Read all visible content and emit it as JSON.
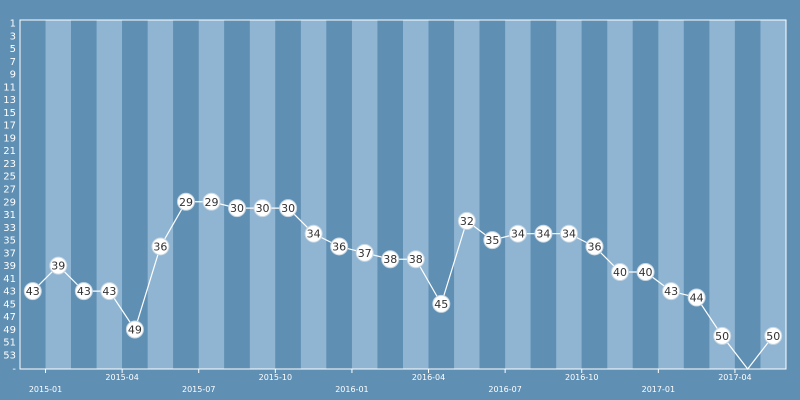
{
  "chart_data": {
    "type": "line",
    "title": "",
    "xlabel": "",
    "ylabel": "",
    "y_axis": {
      "inverted": true,
      "min": 1,
      "max": 53,
      "tick_step": 2,
      "extra_tick_label": "-"
    },
    "x_tick_labels": [
      "2015-01",
      "2015-04",
      "2015-07",
      "2015-10",
      "2016-01",
      "2016-04",
      "2016-07",
      "2016-10",
      "2017-01",
      "2017-04"
    ],
    "x": [
      "2014-12",
      "2015-01",
      "2015-02",
      "2015-03",
      "2015-04",
      "2015-05",
      "2015-06",
      "2015-07",
      "2015-08",
      "2015-09",
      "2015-10",
      "2015-11",
      "2015-12",
      "2016-01",
      "2016-02",
      "2016-03",
      "2016-04",
      "2016-05",
      "2016-06",
      "2016-07",
      "2016-08",
      "2016-09",
      "2016-10",
      "2016-11",
      "2016-12",
      "2017-01",
      "2017-02",
      "2017-03",
      "2017-04",
      "2017-05"
    ],
    "series": [
      {
        "values": [
          43,
          39,
          43,
          43,
          49,
          36,
          29,
          29,
          30,
          30,
          30,
          34,
          36,
          37,
          38,
          38,
          45,
          32,
          35,
          34,
          34,
          34,
          36,
          40,
          40,
          43,
          44,
          50,
          null,
          50
        ]
      }
    ],
    "grid": false,
    "legend": "none",
    "colors": {
      "background": "#5f8fb3",
      "band_light": "#8fb5d3",
      "band_dark": "#5f8fb3",
      "line": "#ffffff",
      "marker_fill": "#ffffff",
      "label_text": "#333333",
      "axis_text": "#ffffff"
    }
  }
}
